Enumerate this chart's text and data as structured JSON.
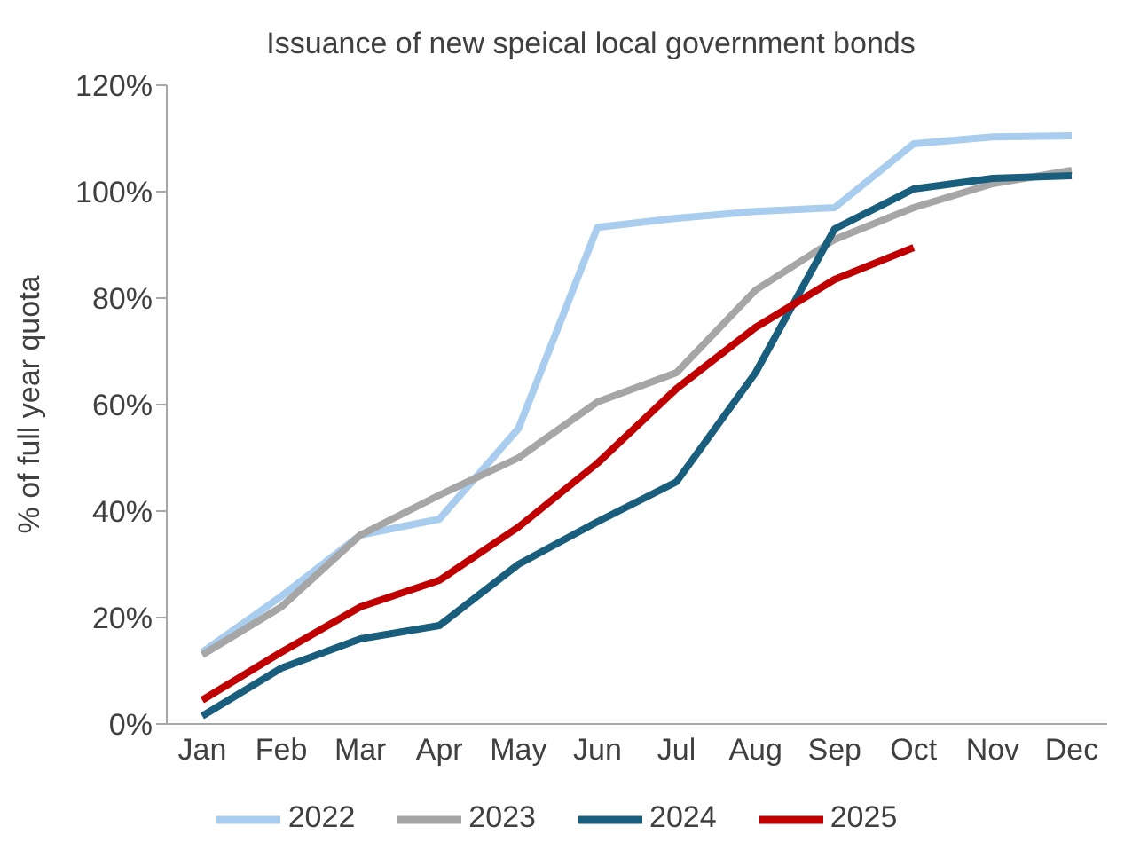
{
  "chart_data": {
    "type": "line",
    "title": "Issuance of new speical local government bonds",
    "ylabel": "% of full year quota",
    "categories": [
      "Jan",
      "Feb",
      "Mar",
      "Apr",
      "May",
      "Jun",
      "Jul",
      "Aug",
      "Sep",
      "Oct",
      "Nov",
      "Dec"
    ],
    "series": [
      {
        "name": "2022",
        "color": "#a9cdef",
        "values": [
          13.5,
          24,
          35.5,
          38.5,
          55.5,
          93.3,
          95,
          96.3,
          97,
          109,
          110.3,
          110.5
        ]
      },
      {
        "name": "2023",
        "color": "#a6a6a6",
        "values": [
          13,
          22,
          35.5,
          43,
          50,
          60.5,
          66,
          81.5,
          91,
          97,
          101.5,
          104
        ]
      },
      {
        "name": "2024",
        "color": "#1a5e7e",
        "values": [
          1.5,
          10.5,
          16,
          18.5,
          30,
          38,
          45.5,
          66,
          93,
          100.5,
          102.5,
          103
        ]
      },
      {
        "name": "2025",
        "color": "#c00000",
        "values": [
          4.5,
          13.5,
          22,
          27,
          37,
          49,
          63,
          74.5,
          83.5,
          89.5,
          null,
          null
        ]
      }
    ],
    "ylim": [
      0,
      120
    ],
    "yticks": [
      {
        "value": 0,
        "label": "0%"
      },
      {
        "value": 20,
        "label": "20%"
      },
      {
        "value": 40,
        "label": "40%"
      },
      {
        "value": 60,
        "label": "60%"
      },
      {
        "value": 80,
        "label": "80%"
      },
      {
        "value": 100,
        "label": "100%"
      },
      {
        "value": 120,
        "label": "120%"
      }
    ],
    "grid": false,
    "legend": "bottom",
    "marker": "none",
    "line_style": "solid"
  }
}
